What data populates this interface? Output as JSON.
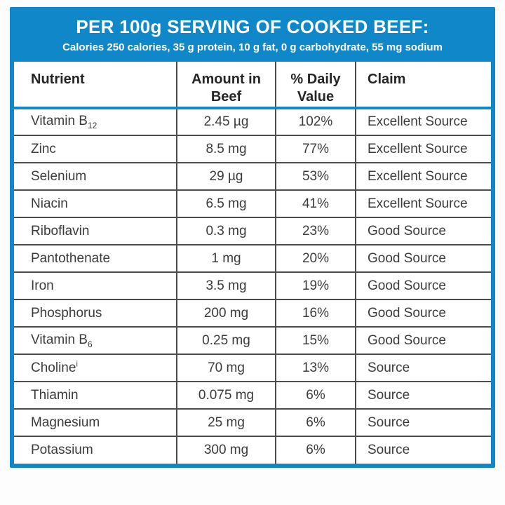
{
  "colors": {
    "banner_blue": "#0f87c9",
    "divider_gray": "#4b4c4e",
    "text_dark": "#3a3b3d",
    "banner_text": "#ffffff"
  },
  "banner": {
    "title": "PER 100g SERVING OF COOKED BEEF:",
    "subtitle": "Calories 250 calories, 35 g protein, 10 g fat, 0 g carbohydrate, 55 mg sodium"
  },
  "table": {
    "headers": [
      "Nutrient",
      "Amount in Beef",
      "% Daily Value",
      "Claim"
    ],
    "rows": [
      {
        "name": "Vitamin B",
        "sub": "12",
        "sup": "",
        "amount": "2.45 µg",
        "daily_value": "102%",
        "claim": "Excellent Source"
      },
      {
        "name": "Zinc",
        "sub": "",
        "sup": "",
        "amount": "8.5 mg",
        "daily_value": "77%",
        "claim": "Excellent Source"
      },
      {
        "name": "Selenium",
        "sub": "",
        "sup": "",
        "amount": "29 µg",
        "daily_value": "53%",
        "claim": "Excellent Source"
      },
      {
        "name": "Niacin",
        "sub": "",
        "sup": "",
        "amount": "6.5 mg",
        "daily_value": "41%",
        "claim": "Excellent Source"
      },
      {
        "name": "Riboflavin",
        "sub": "",
        "sup": "",
        "amount": "0.3 mg",
        "daily_value": "23%",
        "claim": "Good Source"
      },
      {
        "name": "Pantothenate",
        "sub": "",
        "sup": "",
        "amount": "1 mg",
        "daily_value": "20%",
        "claim": "Good Source"
      },
      {
        "name": "Iron",
        "sub": "",
        "sup": "",
        "amount": "3.5 mg",
        "daily_value": "19%",
        "claim": "Good Source"
      },
      {
        "name": "Phosphorus",
        "sub": "",
        "sup": "",
        "amount": "200 mg",
        "daily_value": "16%",
        "claim": "Good Source"
      },
      {
        "name": "Vitamin B",
        "sub": "6",
        "sup": "",
        "amount": "0.25 mg",
        "daily_value": "15%",
        "claim": "Good Source"
      },
      {
        "name": "Choline",
        "sub": "",
        "sup": "i",
        "amount": "70 mg",
        "daily_value": "13%",
        "claim": "Source"
      },
      {
        "name": "Thiamin",
        "sub": "",
        "sup": "",
        "amount": "0.075 mg",
        "daily_value": "6%",
        "claim": "Source"
      },
      {
        "name": "Magnesium",
        "sub": "",
        "sup": "",
        "amount": "25 mg",
        "daily_value": "6%",
        "claim": "Source"
      },
      {
        "name": "Potassium",
        "sub": "",
        "sup": "",
        "amount": "300 mg",
        "daily_value": "6%",
        "claim": "Source"
      }
    ]
  },
  "chart_data": {
    "type": "table",
    "title": "PER 100g SERVING OF COOKED BEEF:",
    "subtitle": "Calories 250 calories, 35 g protein, 10 g fat, 0 g carbohydrate, 55 mg sodium",
    "columns": [
      "Nutrient",
      "Amount in Beef",
      "% Daily Value",
      "Claim"
    ],
    "rows": [
      [
        "Vitamin B12",
        "2.45 µg",
        "102%",
        "Excellent Source"
      ],
      [
        "Zinc",
        "8.5 mg",
        "77%",
        "Excellent Source"
      ],
      [
        "Selenium",
        "29 µg",
        "53%",
        "Excellent Source"
      ],
      [
        "Niacin",
        "6.5 mg",
        "41%",
        "Excellent Source"
      ],
      [
        "Riboflavin",
        "0.3 mg",
        "23%",
        "Good Source"
      ],
      [
        "Pantothenate",
        "1 mg",
        "20%",
        "Good Source"
      ],
      [
        "Iron",
        "3.5 mg",
        "19%",
        "Good Source"
      ],
      [
        "Phosphorus",
        "200 mg",
        "16%",
        "Good Source"
      ],
      [
        "Vitamin B6",
        "0.25 mg",
        "15%",
        "Good Source"
      ],
      [
        "Choline",
        "70 mg",
        "13%",
        "Source"
      ],
      [
        "Thiamin",
        "0.075 mg",
        "6%",
        "Source"
      ],
      [
        "Magnesium",
        "25 mg",
        "6%",
        "Source"
      ],
      [
        "Potassium",
        "300 mg",
        "6%",
        "Source"
      ]
    ]
  }
}
